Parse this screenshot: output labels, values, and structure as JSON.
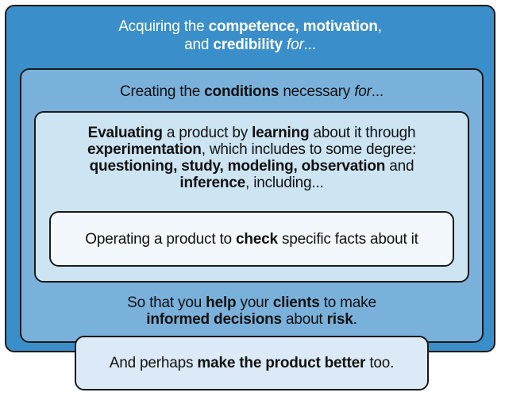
{
  "outer_box": {
    "line1": {
      "a": "Acquiring the ",
      "b": "competence, motivation",
      "c": ","
    },
    "line2": {
      "a": "and ",
      "b": "credibility",
      "c": " ",
      "d": "for",
      "e": "..."
    }
  },
  "middle_box": {
    "line1": {
      "a": "Creating the ",
      "b": "conditions",
      "c": " necessary ",
      "d": "for",
      "e": "..."
    },
    "footer_line1": {
      "a": "So that you ",
      "b": "help",
      "c": " your ",
      "d": "clients",
      "e": " to make"
    },
    "footer_line2": {
      "a": "informed decisions",
      "b": " about ",
      "c": "risk",
      "d": "."
    }
  },
  "inner_box": {
    "line1": {
      "a": "Evaluating",
      "b": " a product by ",
      "c": "learning",
      "d": " about it through"
    },
    "line2": {
      "a": "experimentation",
      "b": ", which includes to some degree:"
    },
    "line3": {
      "a": "questioning, study, modeling, observation",
      "b": " and"
    },
    "line4": {
      "a": "inference",
      "b": ", including..."
    }
  },
  "core_box": {
    "line1": {
      "a": "Operating a product to ",
      "b": "check",
      "c": " specific facts about it"
    }
  },
  "bottom_box": {
    "line1": {
      "a": "And perhaps ",
      "b": "make the product better",
      "c": " too."
    }
  },
  "colors": {
    "outer": "#3a8fca",
    "middle": "#79b1db",
    "inner": "#cde4f3",
    "core": "#f3f8fc",
    "bottom": "#dbeaf6",
    "border": "#1a1a1a"
  }
}
